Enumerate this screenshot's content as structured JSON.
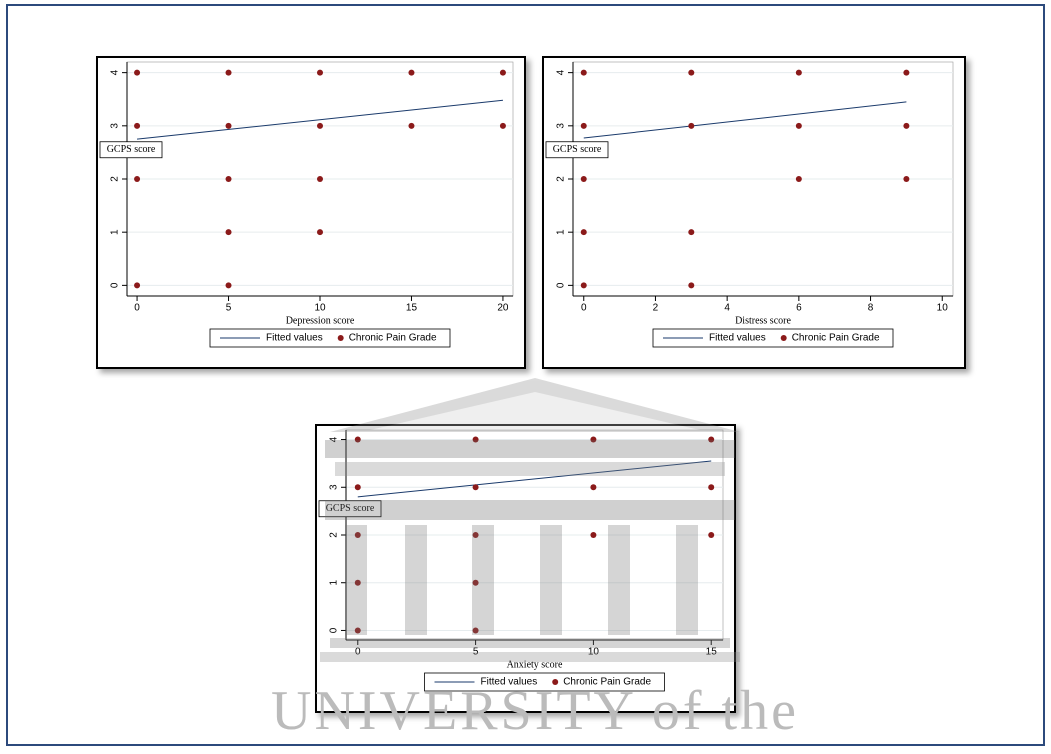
{
  "chart_data": [
    {
      "type": "scatter",
      "x_label": "Depression score",
      "y_label": "GCPS score",
      "xlim": [
        -0.55,
        20.55
      ],
      "xticks": [
        0,
        5,
        10,
        15,
        20
      ],
      "ylim": [
        -0.2,
        4.2
      ],
      "yticks": [
        0,
        1,
        2,
        3,
        4
      ],
      "grid": true,
      "series": [
        {
          "name": "Fitted values",
          "color": "#1a3a6b",
          "kind": "line",
          "x": [
            0,
            20
          ],
          "values": [
            2.75,
            3.48
          ]
        },
        {
          "name": "Chronic Pain Grade",
          "color": "#8b1a1a",
          "kind": "points",
          "x": [
            0,
            0,
            0,
            0,
            5,
            5,
            5,
            5,
            5,
            10,
            10,
            10,
            10,
            15,
            15,
            20,
            20
          ],
          "values": [
            4,
            3,
            2,
            0,
            4,
            3,
            2,
            1,
            0,
            4,
            3,
            2,
            1,
            4,
            3,
            4,
            3
          ]
        }
      ]
    },
    {
      "type": "scatter",
      "x_label": "Distress score",
      "y_label": "GCPS score",
      "xlim": [
        -0.3,
        10.3
      ],
      "xticks": [
        0,
        2,
        4,
        6,
        8,
        10
      ],
      "ylim": [
        -0.2,
        4.2
      ],
      "yticks": [
        0,
        1,
        2,
        3,
        4
      ],
      "grid": true,
      "series": [
        {
          "name": "Fitted values",
          "color": "#1a3a6b",
          "kind": "line",
          "x": [
            0,
            9
          ],
          "values": [
            2.77,
            3.45
          ]
        },
        {
          "name": "Chronic Pain Grade",
          "color": "#8b1a1a",
          "kind": "points",
          "x": [
            0,
            0,
            0,
            0,
            0,
            3,
            3,
            3,
            3,
            6,
            6,
            6,
            9,
            9,
            9
          ],
          "values": [
            4,
            3,
            2,
            1,
            0,
            4,
            3,
            1,
            0,
            4,
            3,
            2,
            4,
            3,
            2
          ]
        }
      ]
    },
    {
      "type": "scatter",
      "x_label": "Anxiety score",
      "y_label": "GCPS score",
      "xlim": [
        -0.5,
        15.5
      ],
      "xticks": [
        0,
        5,
        10,
        15
      ],
      "ylim": [
        -0.2,
        4.2
      ],
      "yticks": [
        0,
        1,
        2,
        3,
        4
      ],
      "grid": true,
      "series": [
        {
          "name": "Fitted values",
          "color": "#1a3a6b",
          "kind": "line",
          "x": [
            0,
            15
          ],
          "values": [
            2.8,
            3.55
          ]
        },
        {
          "name": "Chronic Pain Grade",
          "color": "#8b1a1a",
          "kind": "points",
          "x": [
            0,
            0,
            0,
            0,
            0,
            5,
            5,
            5,
            5,
            5,
            10,
            10,
            10,
            15,
            15,
            15
          ],
          "values": [
            4,
            3,
            2,
            1,
            0,
            4,
            3,
            2,
            1,
            0,
            4,
            3,
            2,
            4,
            3,
            2
          ]
        }
      ]
    }
  ],
  "watermark": "UNIVERSITY of the"
}
